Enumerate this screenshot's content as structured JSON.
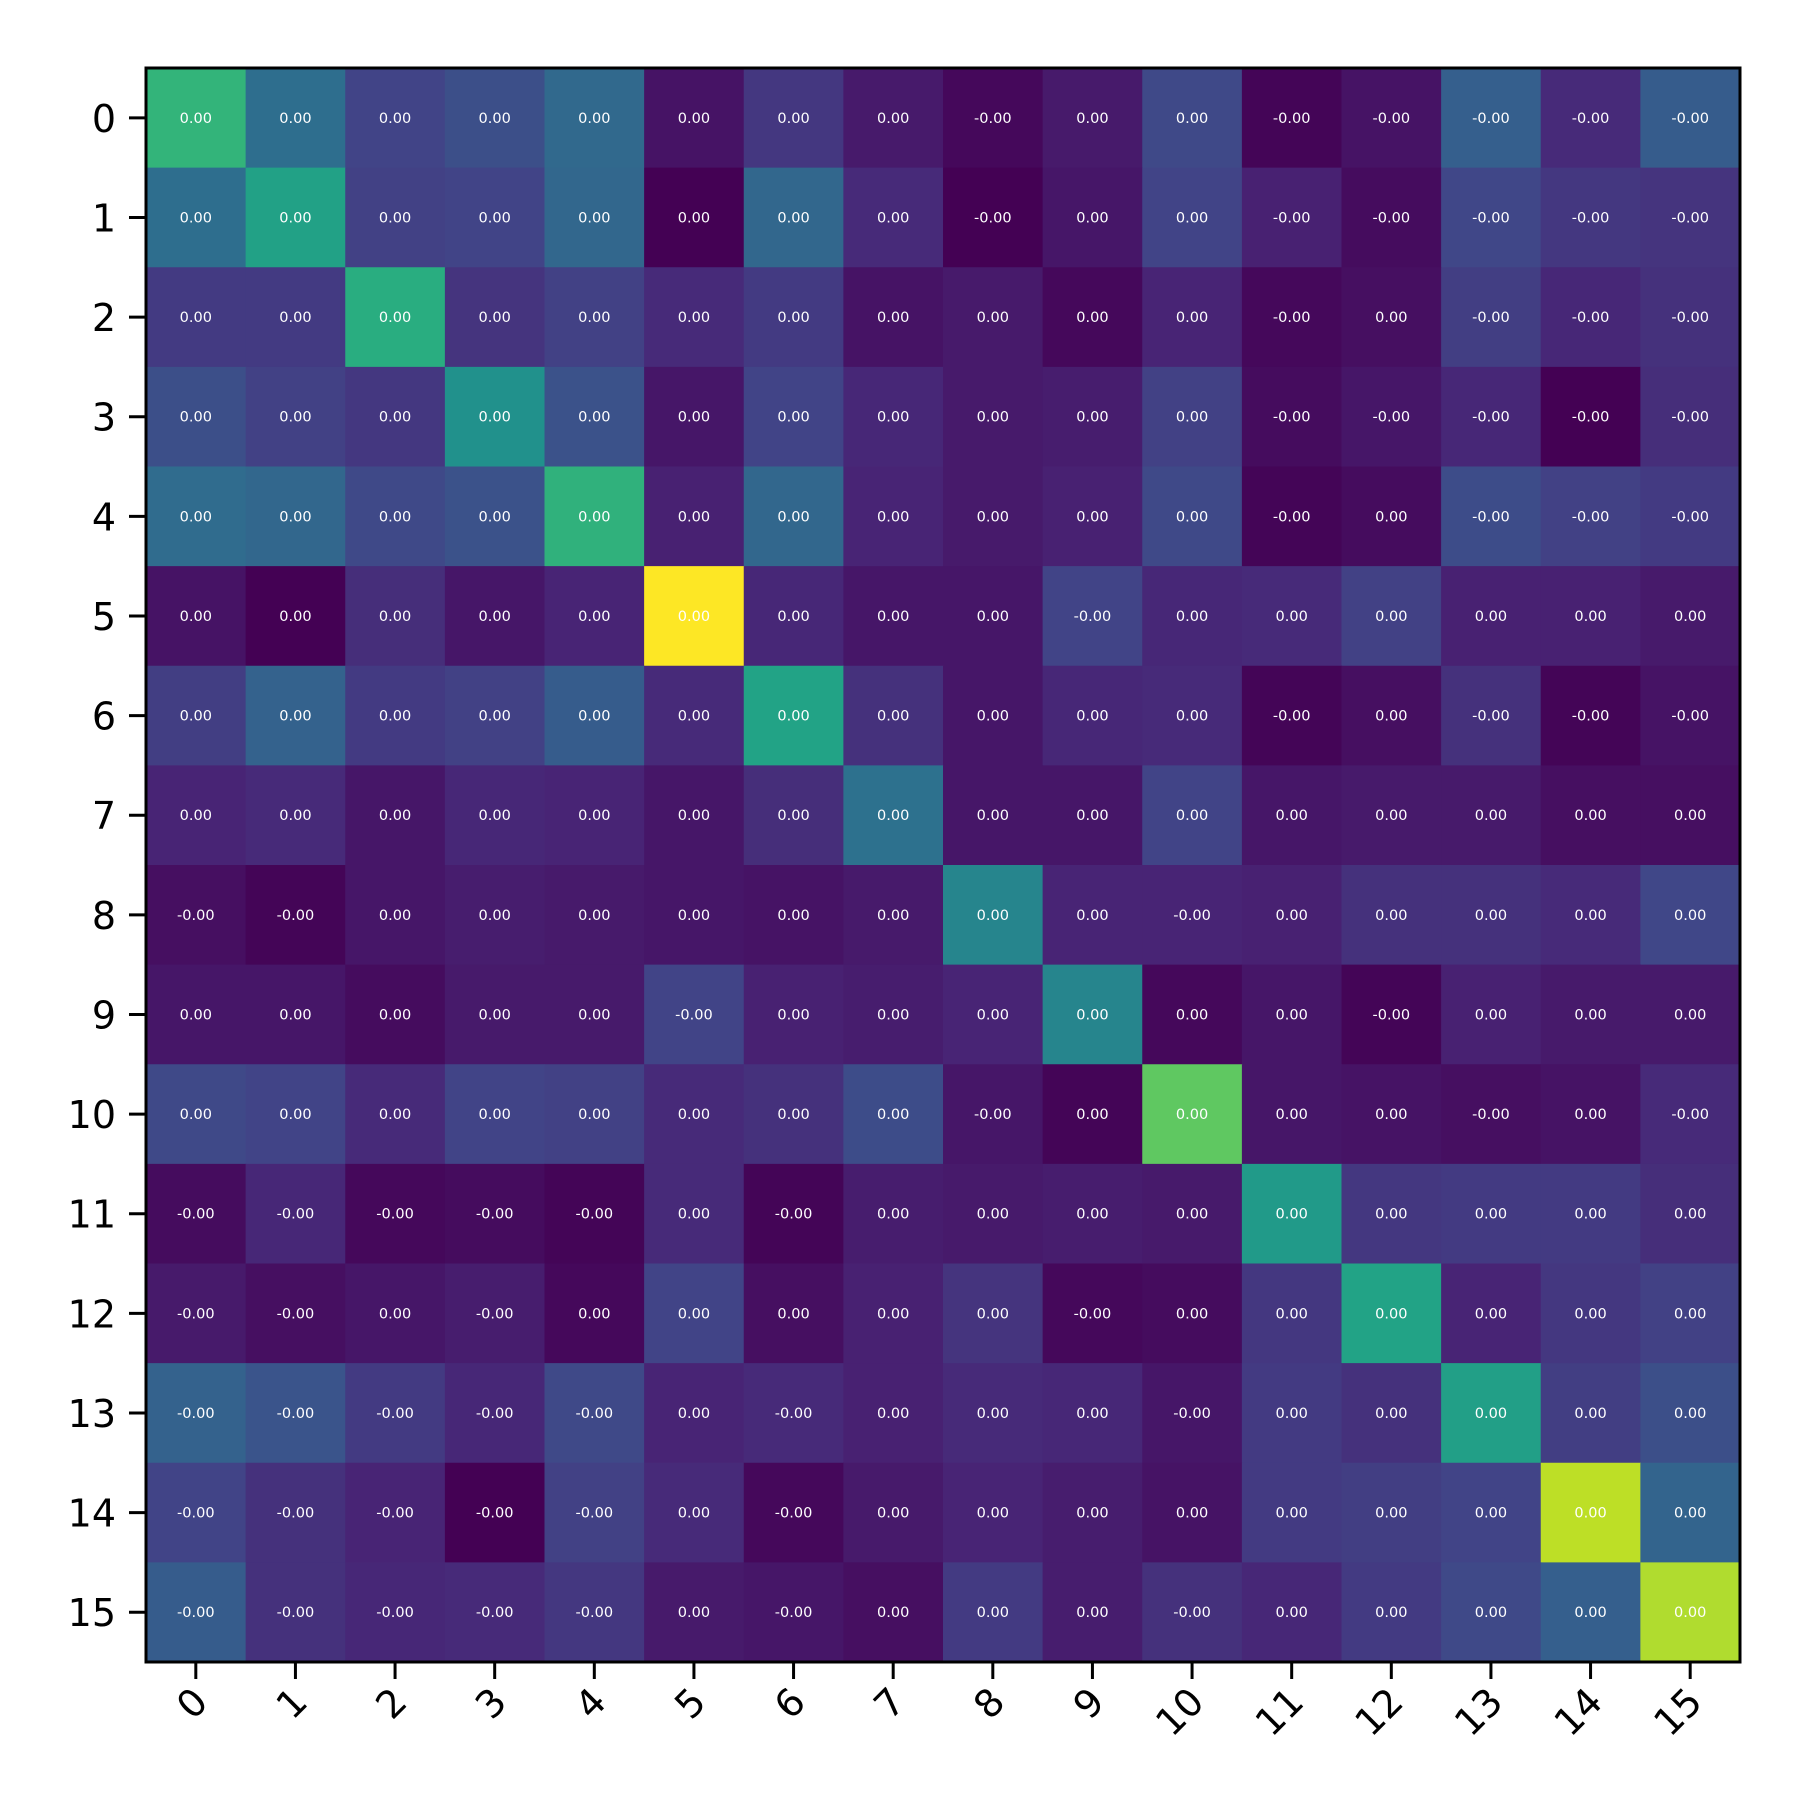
{
  "chart_data": {
    "type": "heatmap",
    "title": "",
    "xlabel": "",
    "ylabel": "",
    "colormap": "viridis",
    "colorbar": false,
    "grid": false,
    "x_tick_labels": [
      "0",
      "1",
      "2",
      "3",
      "4",
      "5",
      "6",
      "7",
      "8",
      "9",
      "10",
      "11",
      "12",
      "13",
      "14",
      "15"
    ],
    "y_tick_labels": [
      "0",
      "1",
      "2",
      "3",
      "4",
      "5",
      "6",
      "7",
      "8",
      "9",
      "10",
      "11",
      "12",
      "13",
      "14",
      "15"
    ],
    "cell_labels": [
      [
        "0.00",
        "0.00",
        "0.00",
        "0.00",
        "0.00",
        "0.00",
        "0.00",
        "0.00",
        "-0.00",
        "0.00",
        "0.00",
        "-0.00",
        "-0.00",
        "-0.00",
        "-0.00",
        "-0.00"
      ],
      [
        "0.00",
        "0.00",
        "0.00",
        "0.00",
        "0.00",
        "0.00",
        "0.00",
        "0.00",
        "-0.00",
        "0.00",
        "0.00",
        "-0.00",
        "-0.00",
        "-0.00",
        "-0.00",
        "-0.00"
      ],
      [
        "0.00",
        "0.00",
        "0.00",
        "0.00",
        "0.00",
        "0.00",
        "0.00",
        "0.00",
        "0.00",
        "0.00",
        "0.00",
        "-0.00",
        "0.00",
        "-0.00",
        "-0.00",
        "-0.00"
      ],
      [
        "0.00",
        "0.00",
        "0.00",
        "0.00",
        "0.00",
        "0.00",
        "0.00",
        "0.00",
        "0.00",
        "0.00",
        "0.00",
        "-0.00",
        "-0.00",
        "-0.00",
        "-0.00",
        "-0.00"
      ],
      [
        "0.00",
        "0.00",
        "0.00",
        "0.00",
        "0.00",
        "0.00",
        "0.00",
        "0.00",
        "0.00",
        "0.00",
        "0.00",
        "-0.00",
        "0.00",
        "-0.00",
        "-0.00",
        "-0.00"
      ],
      [
        "0.00",
        "0.00",
        "0.00",
        "0.00",
        "0.00",
        "0.00",
        "0.00",
        "0.00",
        "0.00",
        "-0.00",
        "0.00",
        "0.00",
        "0.00",
        "0.00",
        "0.00",
        "0.00"
      ],
      [
        "0.00",
        "0.00",
        "0.00",
        "0.00",
        "0.00",
        "0.00",
        "0.00",
        "0.00",
        "0.00",
        "0.00",
        "0.00",
        "-0.00",
        "0.00",
        "-0.00",
        "-0.00",
        "-0.00"
      ],
      [
        "0.00",
        "0.00",
        "0.00",
        "0.00",
        "0.00",
        "0.00",
        "0.00",
        "0.00",
        "0.00",
        "0.00",
        "0.00",
        "0.00",
        "0.00",
        "0.00",
        "0.00",
        "0.00"
      ],
      [
        "-0.00",
        "-0.00",
        "0.00",
        "0.00",
        "0.00",
        "0.00",
        "0.00",
        "0.00",
        "0.00",
        "0.00",
        "-0.00",
        "0.00",
        "0.00",
        "0.00",
        "0.00",
        "0.00"
      ],
      [
        "0.00",
        "0.00",
        "0.00",
        "0.00",
        "0.00",
        "-0.00",
        "0.00",
        "0.00",
        "0.00",
        "0.00",
        "0.00",
        "0.00",
        "-0.00",
        "0.00",
        "0.00",
        "0.00"
      ],
      [
        "0.00",
        "0.00",
        "0.00",
        "0.00",
        "0.00",
        "0.00",
        "0.00",
        "0.00",
        "-0.00",
        "0.00",
        "0.00",
        "0.00",
        "0.00",
        "-0.00",
        "0.00",
        "-0.00"
      ],
      [
        "-0.00",
        "-0.00",
        "-0.00",
        "-0.00",
        "-0.00",
        "0.00",
        "-0.00",
        "0.00",
        "0.00",
        "0.00",
        "0.00",
        "0.00",
        "0.00",
        "0.00",
        "0.00",
        "0.00"
      ],
      [
        "-0.00",
        "-0.00",
        "0.00",
        "-0.00",
        "0.00",
        "0.00",
        "0.00",
        "0.00",
        "0.00",
        "-0.00",
        "0.00",
        "0.00",
        "0.00",
        "0.00",
        "0.00",
        "0.00"
      ],
      [
        "-0.00",
        "-0.00",
        "-0.00",
        "-0.00",
        "-0.00",
        "0.00",
        "-0.00",
        "0.00",
        "0.00",
        "0.00",
        "-0.00",
        "0.00",
        "0.00",
        "0.00",
        "0.00",
        "0.00"
      ],
      [
        "-0.00",
        "-0.00",
        "-0.00",
        "-0.00",
        "-0.00",
        "0.00",
        "-0.00",
        "0.00",
        "0.00",
        "0.00",
        "0.00",
        "0.00",
        "0.00",
        "0.00",
        "0.00",
        "0.00"
      ],
      [
        "-0.00",
        "-0.00",
        "-0.00",
        "-0.00",
        "-0.00",
        "0.00",
        "-0.00",
        "0.00",
        "0.00",
        "0.00",
        "-0.00",
        "0.00",
        "0.00",
        "0.00",
        "0.00",
        "0.00"
      ]
    ],
    "color_levels": [
      [
        0.65,
        0.36,
        0.2,
        0.24,
        0.34,
        0.05,
        0.16,
        0.07,
        0.02,
        0.07,
        0.22,
        0.01,
        0.05,
        0.3,
        0.12,
        0.29
      ],
      [
        0.36,
        0.57,
        0.19,
        0.2,
        0.33,
        0.0,
        0.33,
        0.12,
        0.0,
        0.06,
        0.2,
        0.09,
        0.03,
        0.21,
        0.16,
        0.15
      ],
      [
        0.17,
        0.17,
        0.62,
        0.15,
        0.19,
        0.12,
        0.17,
        0.05,
        0.07,
        0.02,
        0.1,
        0.02,
        0.04,
        0.18,
        0.11,
        0.14
      ],
      [
        0.24,
        0.19,
        0.16,
        0.5,
        0.25,
        0.06,
        0.2,
        0.11,
        0.07,
        0.08,
        0.19,
        0.03,
        0.06,
        0.11,
        0.0,
        0.13
      ],
      [
        0.35,
        0.33,
        0.22,
        0.25,
        0.64,
        0.09,
        0.33,
        0.1,
        0.07,
        0.09,
        0.22,
        0.01,
        0.03,
        0.23,
        0.19,
        0.17
      ],
      [
        0.05,
        0.0,
        0.13,
        0.06,
        0.1,
        1.0,
        0.11,
        0.06,
        0.06,
        0.2,
        0.11,
        0.12,
        0.19,
        0.09,
        0.09,
        0.07
      ],
      [
        0.18,
        0.31,
        0.17,
        0.19,
        0.29,
        0.12,
        0.58,
        0.14,
        0.06,
        0.11,
        0.12,
        0.01,
        0.04,
        0.14,
        0.01,
        0.05
      ],
      [
        0.1,
        0.12,
        0.06,
        0.11,
        0.1,
        0.06,
        0.13,
        0.37,
        0.06,
        0.06,
        0.2,
        0.06,
        0.07,
        0.07,
        0.04,
        0.04
      ],
      [
        0.04,
        0.01,
        0.06,
        0.08,
        0.07,
        0.06,
        0.05,
        0.07,
        0.45,
        0.1,
        0.1,
        0.09,
        0.14,
        0.14,
        0.12,
        0.21
      ],
      [
        0.06,
        0.06,
        0.03,
        0.07,
        0.07,
        0.2,
        0.09,
        0.08,
        0.1,
        0.45,
        0.02,
        0.06,
        0.01,
        0.09,
        0.07,
        0.07
      ],
      [
        0.22,
        0.2,
        0.12,
        0.2,
        0.19,
        0.12,
        0.14,
        0.23,
        0.06,
        0.01,
        0.75,
        0.06,
        0.05,
        0.04,
        0.05,
        0.12
      ],
      [
        0.03,
        0.11,
        0.02,
        0.03,
        0.01,
        0.12,
        0.01,
        0.08,
        0.07,
        0.08,
        0.07,
        0.54,
        0.16,
        0.17,
        0.17,
        0.13
      ],
      [
        0.07,
        0.04,
        0.06,
        0.08,
        0.02,
        0.2,
        0.04,
        0.09,
        0.15,
        0.02,
        0.03,
        0.16,
        0.58,
        0.1,
        0.16,
        0.19
      ],
      [
        0.31,
        0.26,
        0.17,
        0.11,
        0.22,
        0.1,
        0.12,
        0.09,
        0.12,
        0.11,
        0.06,
        0.17,
        0.14,
        0.56,
        0.18,
        0.24
      ],
      [
        0.2,
        0.14,
        0.1,
        0.0,
        0.19,
        0.12,
        0.02,
        0.07,
        0.1,
        0.08,
        0.05,
        0.17,
        0.18,
        0.2,
        0.9,
        0.32
      ],
      [
        0.29,
        0.14,
        0.11,
        0.12,
        0.16,
        0.07,
        0.06,
        0.04,
        0.17,
        0.08,
        0.14,
        0.11,
        0.17,
        0.22,
        0.3,
        0.88
      ]
    ]
  }
}
